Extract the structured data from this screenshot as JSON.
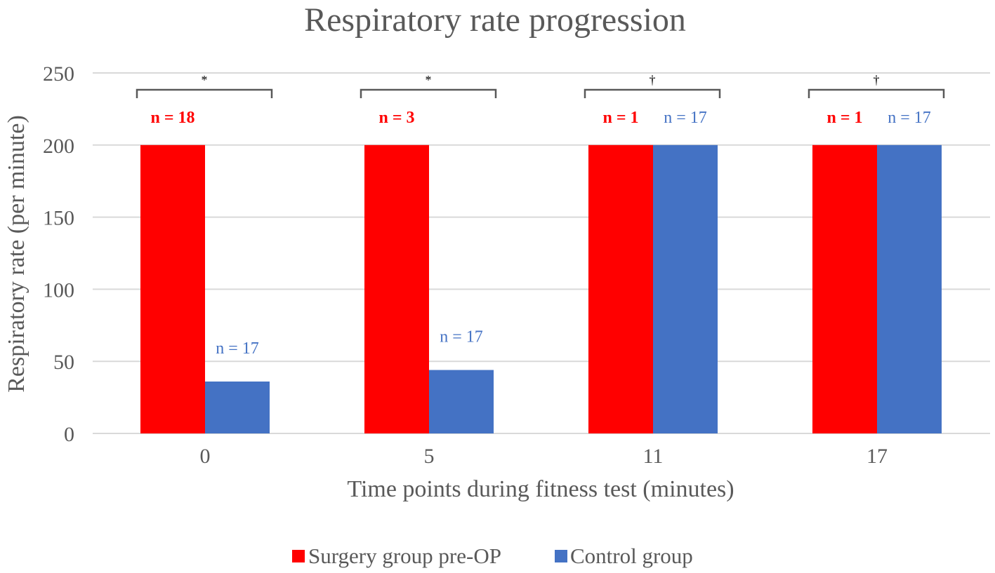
{
  "colors": {
    "surgery": "#ff0000",
    "control": "#4472c4",
    "text": "#595959",
    "grid": "#d9d9d9"
  },
  "chart_data": {
    "type": "bar",
    "title": "Respiratory rate progression",
    "xlabel": "Time points during fitness test (minutes)",
    "ylabel": "Respiratory rate (per minute)",
    "ylim": [
      0,
      250
    ],
    "yticks": [
      0,
      50,
      100,
      150,
      200,
      250
    ],
    "grid": true,
    "legend_position": "bottom",
    "categories": [
      "0",
      "5",
      "11",
      "17"
    ],
    "series": [
      {
        "name": "Surgery group pre-OP",
        "values": [
          200,
          200,
          200,
          200
        ],
        "n_labels": [
          "n = 18",
          "n = 3",
          "n = 1",
          "n = 1"
        ]
      },
      {
        "name": "Control group",
        "values": [
          36,
          44,
          200,
          200
        ],
        "n_labels": [
          "n = 17",
          "n = 17",
          "n = 17",
          "n = 17"
        ]
      }
    ],
    "significance": [
      "*",
      "*",
      "†",
      "†"
    ]
  }
}
